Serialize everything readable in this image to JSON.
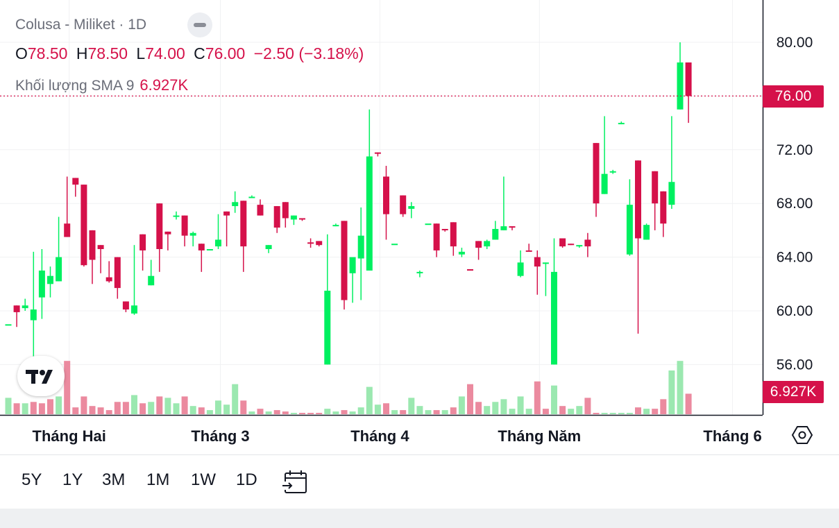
{
  "legend": {
    "title": "Colusa - Miliket · 1D",
    "o_label": "O",
    "o_value": "78.50",
    "h_label": "H",
    "h_value": "78.50",
    "l_label": "L",
    "l_value": "74.00",
    "c_label": "C",
    "c_value": "76.00",
    "change": "−2.50 (−3.18%)",
    "vol_label": "Khối lượng SMA 9",
    "vol_value": "6.927K"
  },
  "price_tag": "76.00",
  "volume_tag": "6.927K",
  "timeframes": [
    "5Y",
    "1Y",
    "3M",
    "1M",
    "1W",
    "1D"
  ],
  "colors": {
    "up": "#00f060",
    "down": "#d5114a",
    "vol_up": "#9be8b0",
    "vol_down": "#eb8a9f",
    "grid": "#f0f1f3",
    "axis_text": "#131722"
  },
  "icons": {
    "collapse": "minus-pill-icon",
    "logo": "tradingview-logo-icon",
    "date_range": "calendar-arrow-icon",
    "settings": "hexagon-gear-icon"
  },
  "chart_data": {
    "type": "candlestick",
    "title": "Colusa - Miliket · 1D",
    "y_ticks": [
      80,
      76,
      72,
      68,
      64,
      60,
      56
    ],
    "y_tick_labels": [
      "80.00",
      "72.00",
      "68.00",
      "64.00",
      "60.00",
      "56.00"
    ],
    "ylim": [
      52.3,
      83.3
    ],
    "last_price": 76.0,
    "month_labels": [
      "Tháng Hai",
      "Tháng 3",
      "Tháng 4",
      "Tháng Năm",
      "Tháng 6"
    ],
    "month_label_index": [
      7,
      25,
      44,
      63,
      86
    ],
    "grid": true,
    "series_ohlc": [
      [
        59.0,
        59.0,
        59.0,
        59.0
      ],
      [
        60.4,
        60.4,
        58.8,
        59.9
      ],
      [
        60.2,
        60.9,
        60.0,
        60.4
      ],
      [
        59.3,
        64.4,
        56.5,
        60.1
      ],
      [
        61.0,
        64.6,
        59.4,
        63.0
      ],
      [
        62.0,
        63.3,
        61.0,
        62.6
      ],
      [
        62.2,
        67.0,
        62.2,
        64.0
      ],
      [
        66.5,
        70.0,
        65.5,
        65.5
      ],
      [
        69.9,
        69.9,
        68.5,
        69.4
      ],
      [
        69.4,
        69.4,
        63.3,
        63.4
      ],
      [
        66.0,
        66.0,
        62.0,
        63.8
      ],
      [
        64.9,
        64.9,
        62.8,
        64.6
      ],
      [
        62.5,
        63.7,
        62.1,
        62.2
      ],
      [
        64.0,
        64.0,
        60.9,
        61.7
      ],
      [
        60.7,
        60.7,
        59.9,
        60.1
      ],
      [
        59.8,
        64.9,
        59.7,
        60.4
      ],
      [
        65.7,
        65.7,
        63.0,
        64.5
      ],
      [
        61.9,
        63.8,
        61.9,
        62.6
      ],
      [
        68.0,
        68.0,
        62.9,
        64.6
      ],
      [
        65.9,
        65.9,
        64.5,
        65.7
      ],
      [
        67.0,
        67.4,
        66.8,
        67.1
      ],
      [
        67.1,
        67.1,
        64.8,
        65.6
      ],
      [
        65.6,
        65.9,
        64.8,
        65.8
      ],
      [
        65.0,
        65.0,
        62.9,
        64.5
      ],
      [
        64.6,
        64.6,
        64.5,
        64.6
      ],
      [
        64.8,
        67.2,
        64.6,
        65.3
      ],
      [
        67.4,
        67.4,
        64.8,
        67.1
      ],
      [
        67.8,
        68.9,
        67.3,
        68.1
      ],
      [
        68.2,
        68.2,
        62.9,
        64.8
      ],
      [
        68.5,
        68.6,
        68.4,
        68.5
      ],
      [
        67.9,
        68.3,
        67.1,
        67.1
      ],
      [
        64.6,
        64.9,
        64.3,
        64.9
      ],
      [
        67.8,
        67.8,
        65.8,
        66.2
      ],
      [
        68.1,
        68.1,
        66.2,
        66.9
      ],
      [
        66.8,
        67.1,
        66.4,
        67.1
      ],
      [
        66.9,
        66.9,
        66.7,
        66.8
      ],
      [
        65.1,
        65.4,
        64.7,
        65.0
      ],
      [
        65.2,
        65.2,
        64.8,
        64.9
      ],
      [
        56.0,
        65.7,
        56.0,
        61.5
      ],
      [
        66.4,
        66.5,
        66.3,
        66.4
      ],
      [
        66.7,
        66.7,
        60.1,
        60.8
      ],
      [
        62.8,
        62.9,
        60.6,
        64.0
      ],
      [
        63.9,
        67.7,
        60.8,
        65.6
      ],
      [
        63.0,
        75.0,
        67.0,
        71.5
      ],
      [
        71.8,
        71.8,
        71.5,
        71.7
      ],
      [
        70.0,
        70.8,
        65.3,
        67.2
      ],
      [
        65.0,
        65.0,
        65.0,
        65.0
      ],
      [
        68.6,
        68.6,
        67.0,
        67.2
      ],
      [
        67.6,
        68.1,
        66.9,
        67.8
      ],
      [
        62.8,
        63.0,
        62.5,
        62.9
      ],
      [
        66.5,
        66.5,
        66.5,
        66.5
      ],
      [
        66.5,
        66.5,
        64.0,
        64.5
      ],
      [
        66.1,
        66.1,
        65.9,
        66.0
      ],
      [
        66.6,
        66.6,
        64.1,
        64.8
      ],
      [
        64.2,
        64.7,
        64.0,
        64.4
      ],
      [
        63.1,
        63.1,
        63.0,
        63.0
      ],
      [
        65.2,
        65.2,
        63.8,
        64.7
      ],
      [
        64.8,
        65.3,
        64.6,
        65.2
      ],
      [
        65.3,
        66.7,
        65.3,
        66.1
      ],
      [
        66.0,
        70.0,
        66.0,
        66.3
      ],
      [
        66.3,
        66.3,
        66.0,
        66.2
      ],
      [
        62.6,
        64.5,
        62.5,
        63.6
      ],
      [
        64.5,
        65.0,
        64.5,
        64.4
      ],
      [
        64.0,
        64.5,
        61.2,
        63.3
      ],
      [
        63.6,
        63.6,
        61.1,
        63.6
      ],
      [
        56.0,
        65.4,
        56.0,
        62.9
      ],
      [
        65.4,
        65.4,
        64.7,
        64.8
      ],
      [
        65.0,
        65.0,
        64.9,
        64.9
      ],
      [
        64.8,
        64.9,
        64.7,
        64.9
      ],
      [
        65.3,
        65.8,
        64.0,
        64.8
      ],
      [
        72.5,
        72.5,
        67.0,
        68.0
      ],
      [
        68.7,
        74.5,
        68.7,
        70.2
      ],
      [
        70.3,
        70.5,
        70.2,
        70.4
      ],
      [
        74.0,
        74.1,
        73.9,
        74.0
      ],
      [
        64.2,
        69.8,
        64.1,
        67.9
      ],
      [
        71.2,
        71.2,
        58.3,
        65.4
      ],
      [
        65.3,
        66.5,
        65.3,
        66.4
      ],
      [
        70.4,
        70.4,
        66.0,
        68.0
      ],
      [
        68.9,
        68.9,
        65.5,
        66.5
      ],
      [
        67.9,
        74.5,
        67.6,
        69.6
      ],
      [
        75.0,
        80.0,
        75.0,
        78.5
      ],
      [
        78.5,
        78.5,
        74.0,
        76.0
      ]
    ],
    "volume_label": "Khối lượng SMA 9",
    "volume_max": 7.5,
    "series_volume": [
      1.2,
      0.8,
      0.8,
      0.9,
      0.8,
      1.1,
      1.3,
      3.9,
      0.5,
      1.3,
      0.6,
      0.5,
      0.3,
      0.9,
      0.9,
      1.4,
      0.8,
      0.9,
      1.3,
      1.2,
      0.8,
      1.3,
      0.6,
      0.5,
      0.3,
      1.0,
      0.7,
      2.2,
      1.0,
      0.2,
      0.4,
      0.2,
      0.3,
      0.2,
      0.1,
      0.1,
      0.1,
      0.1,
      0.4,
      0.2,
      0.3,
      0.2,
      0.5,
      2.0,
      0.7,
      0.8,
      0.3,
      0.3,
      1.2,
      0.6,
      0.3,
      0.3,
      0.3,
      0.5,
      1.3,
      2.2,
      0.9,
      0.6,
      0.9,
      1.1,
      0.4,
      1.3,
      0.4,
      2.4,
      0.4,
      2.1,
      0.6,
      0.4,
      0.6,
      1.2,
      0.1,
      0.1,
      0.1,
      0.1,
      0.1,
      0.5,
      0.4,
      0.4,
      1.1,
      3.2,
      3.9,
      1.5
    ],
    "series_volume_up": [
      true,
      false,
      true,
      false,
      false,
      false,
      true,
      false,
      false,
      false,
      false,
      false,
      false,
      false,
      false,
      true,
      false,
      true,
      false,
      true,
      true,
      false,
      true,
      false,
      true,
      true,
      true,
      true,
      false,
      true,
      false,
      true,
      false,
      false,
      true,
      false,
      false,
      false,
      true,
      true,
      false,
      true,
      true,
      true,
      true,
      false,
      true,
      false,
      true,
      true,
      true,
      false,
      true,
      false,
      true,
      false,
      false,
      true,
      true,
      true,
      true,
      true,
      true,
      false,
      false,
      true,
      false,
      true,
      true,
      false,
      false,
      true,
      true,
      true,
      true,
      false,
      true,
      false,
      false,
      true,
      true,
      false
    ]
  }
}
